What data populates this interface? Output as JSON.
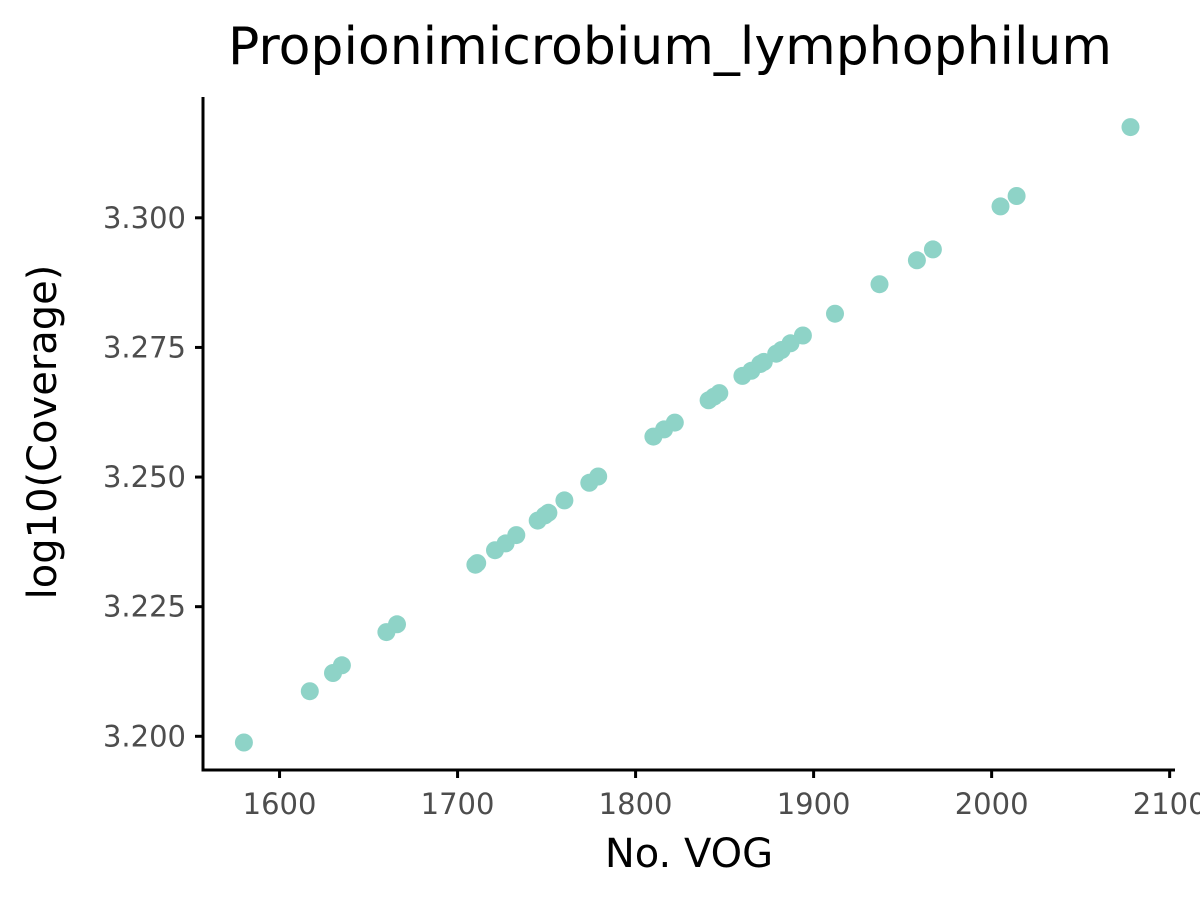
{
  "chart_data": {
    "type": "scatter",
    "title": "Propionimicrobium_lymphophilum",
    "xlabel": "No. VOG",
    "ylabel": "log10(Coverage)",
    "xlim": [
      1557,
      2103
    ],
    "ylim": [
      3.1935,
      3.3233
    ],
    "xticks": [
      1600,
      1700,
      1800,
      1900,
      2000,
      2100
    ],
    "xtick_labels": [
      "1600",
      "1700",
      "1800",
      "1900",
      "2000",
      "2100"
    ],
    "yticks": [
      3.2,
      3.225,
      3.25,
      3.275,
      3.3
    ],
    "ytick_labels": [
      "3.200",
      "3.225",
      "3.250",
      "3.275",
      "3.300"
    ],
    "grid": false,
    "legend": "none",
    "point_color": "#8ed3c7",
    "points": [
      {
        "x": 1580,
        "y": 3.1988
      },
      {
        "x": 1617,
        "y": 3.2087
      },
      {
        "x": 1630,
        "y": 3.2122
      },
      {
        "x": 1635,
        "y": 3.2137
      },
      {
        "x": 1660,
        "y": 3.2201
      },
      {
        "x": 1666,
        "y": 3.2216
      },
      {
        "x": 1710,
        "y": 3.2331
      },
      {
        "x": 1711,
        "y": 3.2334
      },
      {
        "x": 1721,
        "y": 3.2359
      },
      {
        "x": 1727,
        "y": 3.2372
      },
      {
        "x": 1733,
        "y": 3.2388
      },
      {
        "x": 1745,
        "y": 3.2416
      },
      {
        "x": 1749,
        "y": 3.2426
      },
      {
        "x": 1751,
        "y": 3.2431
      },
      {
        "x": 1760,
        "y": 3.2455
      },
      {
        "x": 1774,
        "y": 3.2489
      },
      {
        "x": 1779,
        "y": 3.2501
      },
      {
        "x": 1810,
        "y": 3.2578
      },
      {
        "x": 1816,
        "y": 3.2592
      },
      {
        "x": 1822,
        "y": 3.2605
      },
      {
        "x": 1841,
        "y": 3.2648
      },
      {
        "x": 1844,
        "y": 3.2655
      },
      {
        "x": 1847,
        "y": 3.2662
      },
      {
        "x": 1860,
        "y": 3.2695
      },
      {
        "x": 1865,
        "y": 3.2705
      },
      {
        "x": 1870,
        "y": 3.2718
      },
      {
        "x": 1872,
        "y": 3.2722
      },
      {
        "x": 1879,
        "y": 3.2738
      },
      {
        "x": 1882,
        "y": 3.2745
      },
      {
        "x": 1887,
        "y": 3.2758
      },
      {
        "x": 1894,
        "y": 3.2773
      },
      {
        "x": 1912,
        "y": 3.2815
      },
      {
        "x": 1937,
        "y": 3.2872
      },
      {
        "x": 1958,
        "y": 3.2918
      },
      {
        "x": 1967,
        "y": 3.2939
      },
      {
        "x": 2005,
        "y": 3.3022
      },
      {
        "x": 2014,
        "y": 3.3042
      },
      {
        "x": 2078,
        "y": 3.3175
      }
    ]
  }
}
